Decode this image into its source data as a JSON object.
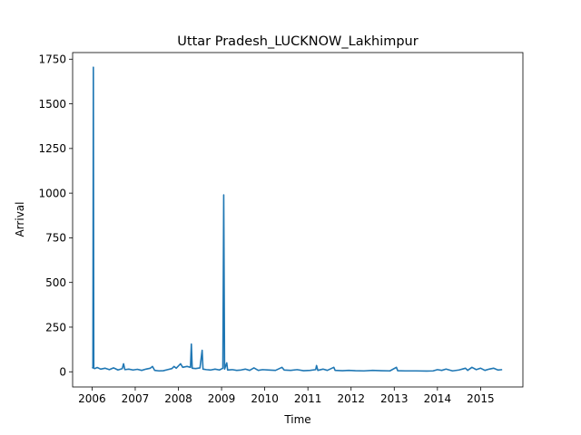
{
  "chart_data": {
    "type": "line",
    "title": "Uttar Pradesh_LUCKNOW_Lakhimpur",
    "xlabel": "Time",
    "ylabel": "Arrival",
    "x_tick_labels": [
      "2006",
      "2007",
      "2008",
      "2009",
      "2010",
      "2011",
      "2012",
      "2013",
      "2014",
      "2015"
    ],
    "y_tick_labels": [
      "0",
      "250",
      "500",
      "750",
      "1000",
      "1250",
      "1500",
      "1750"
    ],
    "x_ticks": [
      2006,
      2007,
      2008,
      2009,
      2010,
      2011,
      2012,
      2013,
      2014,
      2015
    ],
    "y_ticks": [
      0,
      250,
      500,
      750,
      1000,
      1250,
      1500,
      1750
    ],
    "xlim": [
      2005.55,
      2015.98
    ],
    "ylim": [
      -85,
      1787
    ],
    "grid": false,
    "legend": "none",
    "series": [
      {
        "color": "#1f77b4",
        "points": [
          [
            2006.0,
            25
          ],
          [
            2006.02,
            22
          ],
          [
            2006.03,
            1705
          ],
          [
            2006.04,
            20
          ],
          [
            2006.06,
            18
          ],
          [
            2006.12,
            24
          ],
          [
            2006.2,
            15
          ],
          [
            2006.3,
            20
          ],
          [
            2006.4,
            12
          ],
          [
            2006.5,
            22
          ],
          [
            2006.6,
            10
          ],
          [
            2006.7,
            18
          ],
          [
            2006.73,
            45
          ],
          [
            2006.76,
            12
          ],
          [
            2006.85,
            15
          ],
          [
            2006.95,
            10
          ],
          [
            2007.05,
            14
          ],
          [
            2007.15,
            8
          ],
          [
            2007.25,
            15
          ],
          [
            2007.35,
            20
          ],
          [
            2007.4,
            30
          ],
          [
            2007.45,
            8
          ],
          [
            2007.55,
            5
          ],
          [
            2007.65,
            6
          ],
          [
            2007.75,
            12
          ],
          [
            2007.85,
            18
          ],
          [
            2007.9,
            30
          ],
          [
            2007.95,
            20
          ],
          [
            2008.05,
            45
          ],
          [
            2008.1,
            25
          ],
          [
            2008.2,
            30
          ],
          [
            2008.28,
            25
          ],
          [
            2008.3,
            155
          ],
          [
            2008.32,
            20
          ],
          [
            2008.4,
            18
          ],
          [
            2008.5,
            22
          ],
          [
            2008.55,
            120
          ],
          [
            2008.57,
            15
          ],
          [
            2008.65,
            12
          ],
          [
            2008.75,
            10
          ],
          [
            2008.85,
            15
          ],
          [
            2008.95,
            10
          ],
          [
            2009.03,
            20
          ],
          [
            2009.05,
            990
          ],
          [
            2009.07,
            15
          ],
          [
            2009.12,
            50
          ],
          [
            2009.14,
            10
          ],
          [
            2009.25,
            12
          ],
          [
            2009.35,
            8
          ],
          [
            2009.45,
            10
          ],
          [
            2009.55,
            15
          ],
          [
            2009.65,
            8
          ],
          [
            2009.75,
            22
          ],
          [
            2009.85,
            8
          ],
          [
            2009.95,
            12
          ],
          [
            2010.1,
            10
          ],
          [
            2010.25,
            8
          ],
          [
            2010.4,
            25
          ],
          [
            2010.45,
            10
          ],
          [
            2010.6,
            8
          ],
          [
            2010.75,
            12
          ],
          [
            2010.9,
            6
          ],
          [
            2011.05,
            8
          ],
          [
            2011.18,
            12
          ],
          [
            2011.2,
            35
          ],
          [
            2011.23,
            8
          ],
          [
            2011.35,
            15
          ],
          [
            2011.45,
            8
          ],
          [
            2011.6,
            25
          ],
          [
            2011.63,
            8
          ],
          [
            2011.8,
            6
          ],
          [
            2011.95,
            8
          ],
          [
            2012.1,
            6
          ],
          [
            2012.3,
            5
          ],
          [
            2012.5,
            8
          ],
          [
            2012.7,
            6
          ],
          [
            2012.9,
            5
          ],
          [
            2013.05,
            25
          ],
          [
            2013.08,
            6
          ],
          [
            2013.25,
            5
          ],
          [
            2013.5,
            5
          ],
          [
            2013.75,
            4
          ],
          [
            2013.9,
            5
          ],
          [
            2014.0,
            12
          ],
          [
            2014.1,
            8
          ],
          [
            2014.2,
            15
          ],
          [
            2014.35,
            5
          ],
          [
            2014.5,
            10
          ],
          [
            2014.65,
            20
          ],
          [
            2014.7,
            8
          ],
          [
            2014.8,
            25
          ],
          [
            2014.9,
            12
          ],
          [
            2015.0,
            20
          ],
          [
            2015.1,
            8
          ],
          [
            2015.2,
            15
          ],
          [
            2015.3,
            20
          ],
          [
            2015.4,
            10
          ],
          [
            2015.5,
            12
          ]
        ]
      }
    ]
  }
}
